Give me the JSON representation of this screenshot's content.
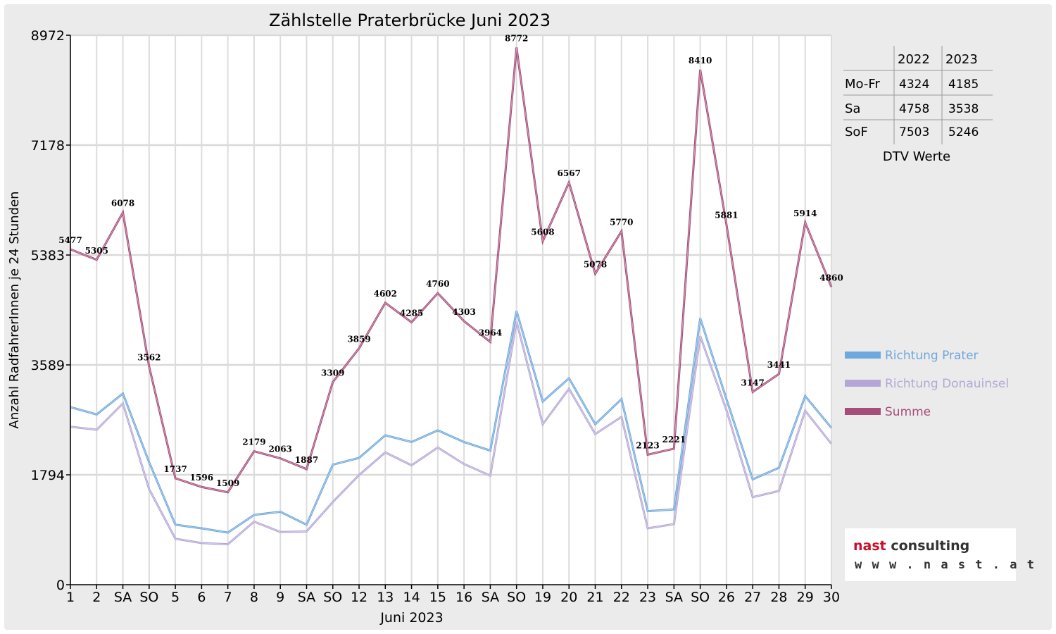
{
  "chart_data": {
    "type": "line",
    "title": "Zählstelle Praterbrücke Juni 2023",
    "xlabel": "Juni 2023",
    "ylabel": "Anzahl RadfahrerInnen je 24 Stunden",
    "ylim": [
      0,
      8972
    ],
    "yticks": [
      0,
      1794,
      3589,
      5383,
      7178,
      8972
    ],
    "grid": "horizontal",
    "legend_position": "right",
    "categories": [
      "1",
      "2",
      "SA",
      "SO",
      "5",
      "6",
      "7",
      "8",
      "9",
      "SA",
      "SO",
      "12",
      "13",
      "14",
      "15",
      "16",
      "SA",
      "SO",
      "19",
      "20",
      "21",
      "22",
      "23",
      "SA",
      "SO",
      "26",
      "27",
      "28",
      "29",
      "30"
    ],
    "highlight_categories": [
      "SO",
      "8"
    ],
    "highlight_color": "#e00000",
    "series": [
      {
        "name": "Richtung Prater",
        "color": "#6fa8dc",
        "values": [
          2900,
          2780,
          3120,
          2000,
          980,
          920,
          850,
          1140,
          1190,
          980,
          1960,
          2070,
          2440,
          2330,
          2520,
          2330,
          2190,
          4470,
          2990,
          3370,
          2620,
          3030,
          1200,
          1230,
          4350,
          3030,
          1720,
          1910,
          3080,
          2560
        ]
      },
      {
        "name": "Richtung Donauinsel",
        "color": "#b4a7d6",
        "values": [
          2580,
          2530,
          2960,
          1560,
          750,
          680,
          660,
          1030,
          860,
          870,
          1350,
          1790,
          2160,
          1950,
          2240,
          1970,
          1780,
          4300,
          2620,
          3200,
          2460,
          2740,
          920,
          990,
          4060,
          2850,
          1430,
          1530,
          2840,
          2300
        ]
      },
      {
        "name": "Summe",
        "color": "#a64d79",
        "values": [
          5477,
          5305,
          6078,
          3562,
          1737,
          1596,
          1509,
          2179,
          2063,
          1887,
          3309,
          3859,
          4602,
          4285,
          4760,
          4303,
          3964,
          8772,
          5608,
          6567,
          5078,
          5770,
          2123,
          2221,
          8410,
          5881,
          3147,
          3441,
          5914,
          4860
        ]
      }
    ],
    "data_labels": [
      "5477",
      "5305",
      "6078",
      "3562",
      "1737",
      "1596",
      "1509",
      "2179",
      "2063",
      "1887",
      "3309",
      "3859",
      "4602",
      "4285",
      "4760",
      "4303",
      "3964",
      "8772",
      "5608",
      "6567",
      "5078",
      "5770",
      "2123",
      "2221",
      "8410",
      "5881",
      "3147",
      "3441",
      "5914",
      "4860"
    ]
  },
  "dtv_table": {
    "headers": [
      "",
      "2022",
      "2023"
    ],
    "rows": [
      [
        "Mo-Fr",
        "4324",
        "4185"
      ],
      [
        "Sa",
        "4758",
        "3538"
      ],
      [
        "SoF",
        "7503",
        "5246"
      ]
    ],
    "caption": "DTV Werte"
  },
  "logo": {
    "line1_a": "nast",
    "line1_b": " consulting",
    "line2": "w w w . n a s t . a t"
  }
}
